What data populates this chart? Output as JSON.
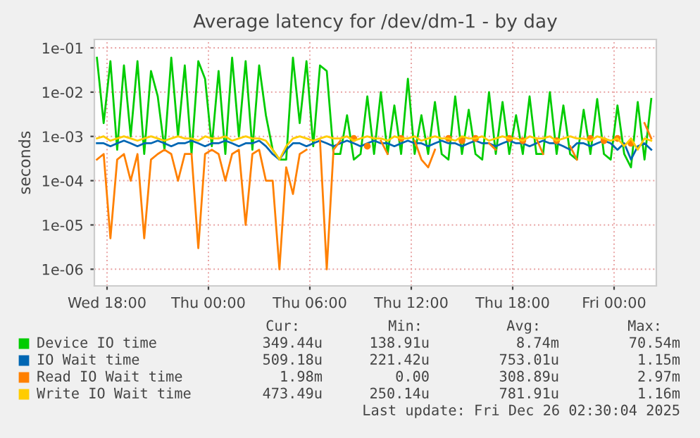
{
  "chart_data": {
    "type": "line",
    "title": "Average latency for /dev/dm-1 - by day",
    "ylabel": "seconds",
    "log": true,
    "grid": true,
    "legend": "bottom",
    "marker": "none",
    "line_style": "solid",
    "xlim": [
      "2025-12-24T17:15",
      "2025-12-26T02:30"
    ],
    "xticks": [
      {
        "value": "2025-12-24T18:00",
        "label": "Wed 18:00"
      },
      {
        "value": "2025-12-25T00:00",
        "label": "Thu 00:00"
      },
      {
        "value": "2025-12-25T06:00",
        "label": "Thu 06:00"
      },
      {
        "value": "2025-12-25T12:00",
        "label": "Thu 12:00"
      },
      {
        "value": "2025-12-25T18:00",
        "label": "Thu 18:00"
      },
      {
        "value": "2025-12-26T00:00",
        "label": "Fri 00:00"
      }
    ],
    "ylim": [
      4.2e-07,
      0.155
    ],
    "yticks": [
      {
        "value": 1e-06,
        "label": "1e-06"
      },
      {
        "value": 1e-05,
        "label": "1e-05"
      },
      {
        "value": 0.0001,
        "label": "1e-04"
      },
      {
        "value": 0.001,
        "label": "1e-03"
      },
      {
        "value": 0.01,
        "label": "1e-02"
      },
      {
        "value": 0.1,
        "label": "1e-01"
      }
    ],
    "x": [
      "2025-12-24T17:24",
      "2025-12-24T17:48",
      "2025-12-24T18:12",
      "2025-12-24T18:36",
      "2025-12-24T19:00",
      "2025-12-24T19:24",
      "2025-12-24T19:48",
      "2025-12-24T20:12",
      "2025-12-24T20:36",
      "2025-12-24T21:00",
      "2025-12-24T21:24",
      "2025-12-24T21:48",
      "2025-12-24T22:12",
      "2025-12-24T22:36",
      "2025-12-24T23:00",
      "2025-12-24T23:24",
      "2025-12-24T23:48",
      "2025-12-25T00:12",
      "2025-12-25T00:36",
      "2025-12-25T01:00",
      "2025-12-25T01:24",
      "2025-12-25T01:48",
      "2025-12-25T02:12",
      "2025-12-25T02:36",
      "2025-12-25T03:00",
      "2025-12-25T03:24",
      "2025-12-25T03:48",
      "2025-12-25T04:12",
      "2025-12-25T04:36",
      "2025-12-25T05:00",
      "2025-12-25T05:24",
      "2025-12-25T05:48",
      "2025-12-25T06:12",
      "2025-12-25T06:36",
      "2025-12-25T07:00",
      "2025-12-25T07:24",
      "2025-12-25T07:48",
      "2025-12-25T08:12",
      "2025-12-25T08:36",
      "2025-12-25T09:00",
      "2025-12-25T09:24",
      "2025-12-25T09:48",
      "2025-12-25T10:12",
      "2025-12-25T10:36",
      "2025-12-25T11:00",
      "2025-12-25T11:24",
      "2025-12-25T11:48",
      "2025-12-25T12:12",
      "2025-12-25T12:36",
      "2025-12-25T13:00",
      "2025-12-25T13:24",
      "2025-12-25T13:48",
      "2025-12-25T14:12",
      "2025-12-25T14:36",
      "2025-12-25T15:00",
      "2025-12-25T15:24",
      "2025-12-25T15:48",
      "2025-12-25T16:12",
      "2025-12-25T16:36",
      "2025-12-25T17:00",
      "2025-12-25T17:24",
      "2025-12-25T17:48",
      "2025-12-25T18:12",
      "2025-12-25T18:36",
      "2025-12-25T19:00",
      "2025-12-25T19:24",
      "2025-12-25T19:48",
      "2025-12-25T20:12",
      "2025-12-25T20:36",
      "2025-12-25T21:00",
      "2025-12-25T21:24",
      "2025-12-25T21:48",
      "2025-12-25T22:12",
      "2025-12-25T22:36",
      "2025-12-25T23:00",
      "2025-12-25T23:24",
      "2025-12-25T23:48",
      "2025-12-26T00:12",
      "2025-12-26T00:36",
      "2025-12-26T01:00",
      "2025-12-26T01:24",
      "2025-12-26T01:48",
      "2025-12-26T02:12"
    ],
    "series": [
      {
        "name": "Device IO time",
        "color": "#00cc00",
        "values": [
          0.06,
          0.002,
          0.05,
          0.0005,
          0.04,
          0.001,
          0.05,
          0.0004,
          0.03,
          0.008,
          0.0005,
          0.06,
          0.001,
          0.04,
          0.0004,
          0.05,
          0.02,
          0.0006,
          0.03,
          0.0004,
          0.06,
          0.001,
          0.05,
          0.0005,
          0.04,
          0.003,
          0.0005,
          0.0003,
          0.0003,
          0.06,
          0.002,
          0.05,
          0.0006,
          0.04,
          0.03,
          0.0004,
          0.0004,
          0.003,
          0.0003,
          0.0004,
          0.008,
          0.0004,
          0.01,
          0.0004,
          0.005,
          0.0004,
          0.02,
          0.0004,
          0.003,
          0.0004,
          0.006,
          0.0004,
          0.0003,
          0.008,
          0.0004,
          0.004,
          0.0004,
          0.0003,
          0.01,
          0.0004,
          0.006,
          0.0004,
          0.003,
          0.0004,
          0.008,
          0.0004,
          0.0004,
          0.01,
          0.0004,
          0.005,
          0.0004,
          0.0003,
          0.004,
          0.0004,
          0.007,
          0.0004,
          0.0003,
          0.005,
          0.0004,
          0.0002,
          0.006,
          0.0003,
          0.007
        ]
      },
      {
        "name": "IO Wait time",
        "color": "#0066b3",
        "values": [
          0.0007,
          0.0007,
          0.0006,
          0.0007,
          0.0008,
          0.0007,
          0.0006,
          0.0007,
          0.0007,
          0.0008,
          0.0007,
          0.0006,
          0.0007,
          0.0007,
          0.0008,
          0.0007,
          0.0006,
          0.0007,
          0.0007,
          0.0008,
          0.0007,
          0.0006,
          0.0007,
          0.0007,
          0.0008,
          0.0006,
          0.0004,
          0.0003,
          0.0005,
          0.0007,
          0.0007,
          0.0006,
          0.0007,
          0.0008,
          0.0007,
          0.0006,
          0.0007,
          0.0008,
          0.0007,
          0.0006,
          0.0007,
          0.0008,
          0.0007,
          0.0007,
          0.0006,
          0.0007,
          0.0008,
          0.0007,
          0.0007,
          0.0006,
          0.0007,
          0.0008,
          0.0007,
          0.0007,
          0.0006,
          0.0007,
          0.0008,
          0.0007,
          0.0007,
          0.0006,
          0.0007,
          0.0008,
          0.0007,
          0.0007,
          0.0006,
          0.0007,
          0.0008,
          0.0007,
          0.0007,
          0.0006,
          0.0005,
          0.0007,
          0.0007,
          0.0006,
          0.0007,
          0.0008,
          0.0007,
          0.0005,
          0.0007,
          0.0003,
          0.0006,
          0.0007,
          0.0005
        ]
      },
      {
        "name": "Read IO Wait time",
        "color": "#ff8000",
        "values": [
          0.0003,
          0.0004,
          5e-06,
          0.0003,
          0.0004,
          0.0001,
          0.0004,
          5e-06,
          0.0003,
          0.0004,
          0.0005,
          0.0004,
          0.0001,
          0.0004,
          0.0004,
          3e-06,
          0.0004,
          0.0005,
          0.0004,
          0.0001,
          0.0004,
          0.0005,
          1e-05,
          0.0004,
          0.0005,
          0.0001,
          0.0001,
          1e-06,
          0.0002,
          5e-05,
          0.0004,
          0.0005,
          null,
          0.0008,
          1e-06,
          0.0005,
          0.0008,
          null,
          0.0009,
          null,
          0.0006,
          null,
          0.0008,
          0.0004,
          null,
          0.0009,
          null,
          0.0008,
          0.0003,
          0.0002,
          0.0005,
          null,
          0.0009,
          null,
          0.0008,
          null,
          0.0009,
          null,
          0.0007,
          0.0005,
          null,
          0.0009,
          null,
          0.0008,
          null,
          0.0009,
          0.0004,
          null,
          0.0008,
          null,
          0.0006,
          0.0003,
          null,
          0.0009,
          null,
          0.0008,
          null,
          0.0009,
          null,
          0.0007,
          null,
          0.002,
          0.0009
        ]
      },
      {
        "name": "Write IO Wait time",
        "color": "#ffcc00",
        "values": [
          0.0009,
          0.001,
          0.0008,
          0.0009,
          0.001,
          0.0009,
          0.0008,
          0.0009,
          0.001,
          0.0009,
          0.0008,
          0.0009,
          0.001,
          0.0009,
          0.0009,
          0.0008,
          0.001,
          0.0009,
          0.0009,
          0.001,
          0.0008,
          0.0009,
          0.001,
          0.0009,
          0.0009,
          0.0008,
          0.0005,
          0.0003,
          0.0006,
          0.0009,
          0.001,
          0.0009,
          0.0008,
          0.0009,
          0.001,
          0.0009,
          0.0009,
          0.001,
          0.0008,
          0.0009,
          0.001,
          0.0009,
          0.0009,
          0.0008,
          0.001,
          0.0009,
          0.0009,
          0.001,
          0.0008,
          0.0009,
          0.001,
          0.0009,
          0.0009,
          0.0008,
          0.001,
          0.0009,
          0.0009,
          0.001,
          0.0008,
          0.0009,
          0.001,
          0.0009,
          0.0009,
          0.0008,
          0.001,
          0.0009,
          0.0009,
          0.001,
          0.0008,
          0.0009,
          0.001,
          0.0009,
          0.0009,
          0.0008,
          0.001,
          0.0009,
          0.0008,
          0.0009,
          0.0006,
          0.0009,
          0.0005,
          0.0009,
          0.0008
        ]
      }
    ],
    "annotations": [
      "Cur:",
      "Min:",
      "Avg:",
      "Max:",
      "349.44u",
      "138.91u",
      "8.74m",
      "70.54m",
      "509.18u",
      "221.42u",
      "753.01u",
      "1.15m",
      "1.98m",
      "0.00",
      "308.89u",
      "2.97m",
      "473.49u",
      "250.14u",
      "781.91u",
      "1.16m",
      "Last update: Fri Dec 26 02:30:04 2025"
    ]
  }
}
